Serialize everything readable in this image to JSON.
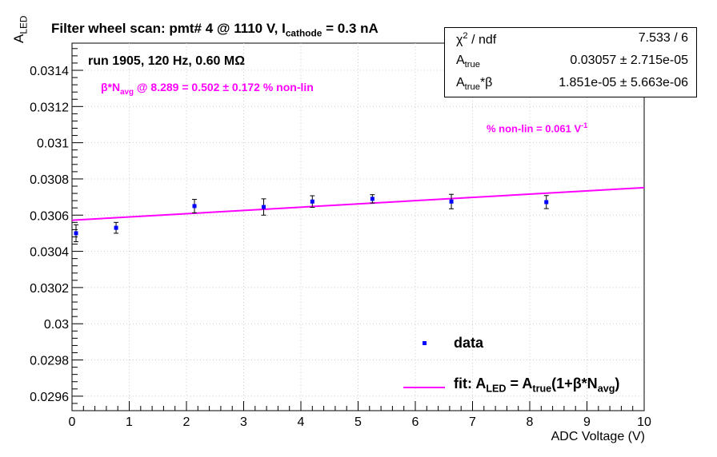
{
  "chart_data": {
    "type": "scatter",
    "title": "Filter wheel scan: pmt#   4 @  1110 V, I",
    "title_sub": "cathode",
    "title_tail": " = 0.3 nA",
    "xlabel": "ADC Voltage (V)",
    "ylabel": "A",
    "ylabel_sub": "LED",
    "xlim": [
      0,
      10
    ],
    "ylim": [
      0.02952,
      0.03155
    ],
    "x_ticks": [
      "0",
      "1",
      "2",
      "3",
      "4",
      "5",
      "6",
      "7",
      "8",
      "9",
      "10"
    ],
    "y_ticks": [
      "0.0296",
      "0.0298",
      "0.03",
      "0.0302",
      "0.0304",
      "0.0306",
      "0.0308",
      "0.031",
      "0.0312",
      "0.0314"
    ],
    "grid": true,
    "series": [
      {
        "name": "data",
        "color": "#0000ff",
        "x": [
          0.07,
          0.77,
          2.14,
          3.35,
          4.2,
          5.25,
          6.63,
          8.29
        ],
        "y": [
          0.0305,
          0.03053,
          0.03065,
          0.030645,
          0.030675,
          0.03069,
          0.030675,
          0.030672
        ],
        "yerr": [
          4.7e-05,
          3e-05,
          3.7e-05,
          4.5e-05,
          3.2e-05,
          2.3e-05,
          4e-05,
          3.6e-05
        ]
      }
    ],
    "fit": {
      "name": "fit",
      "color": "#ff00ff",
      "x": [
        0,
        10
      ],
      "y": [
        0.030572,
        0.030752
      ]
    },
    "legend": {
      "data_label": "data",
      "fit_prefix": "fit: A",
      "fit_sub1": "LED",
      "fit_mid": " = A",
      "fit_sub2": "true",
      "fit_mid2": "(1+β*N",
      "fit_sub3": "avg",
      "fit_tail": ")",
      "position": "bottom-right"
    },
    "annotations": {
      "run": "run 1905, 120 Hz, 0.60 MΩ",
      "beta_prefix": "β*N",
      "beta_sub": "avg",
      "beta_tail": " @ 8.289 = 0.502 ± 0.172 % non-lin",
      "nonlin_text": "% non-lin = 0.061 V",
      "nonlin_sup": "-1"
    },
    "stats": {
      "rows": [
        {
          "key_html_main": "χ",
          "key_sup": "2",
          "key_tail": " / ndf",
          "value": "7.533 / 6"
        },
        {
          "key_html_main": "A",
          "key_sub": "true",
          "key_tail": "",
          "value": "0.03057 ± 2.715e-05"
        },
        {
          "key_html_main": "A",
          "key_sub": "true",
          "key_tail": "*β",
          "value": "1.851e-05 ± 5.663e-06"
        }
      ]
    },
    "colors": {
      "data": "#0000ff",
      "fit": "#ff00ff",
      "grid": "#cccccc",
      "axis": "#000000"
    }
  }
}
